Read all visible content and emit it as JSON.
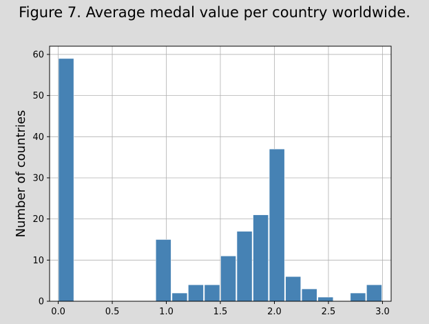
{
  "chart_data": {
    "type": "bar",
    "title": "Figure 7. Average medal value per country worldwide.",
    "xlabel": "",
    "ylabel": "Number of countries",
    "xlim": [
      -0.08,
      3.08
    ],
    "ylim": [
      0,
      62
    ],
    "grid": true,
    "x_ticks": [
      "0.0",
      "0.5",
      "1.0",
      "1.5",
      "2.0",
      "2.5",
      "3.0"
    ],
    "x_tick_values": [
      0,
      0.5,
      1.0,
      1.5,
      2.0,
      2.5,
      3.0
    ],
    "y_ticks": [
      "0",
      "10",
      "20",
      "30",
      "40",
      "50",
      "60"
    ],
    "y_tick_values": [
      0,
      10,
      20,
      30,
      40,
      50,
      60
    ],
    "bin_edges": [
      0.0,
      0.15,
      0.3,
      0.45,
      0.6,
      0.75,
      0.9,
      1.05,
      1.2,
      1.35,
      1.5,
      1.65,
      1.8,
      1.95,
      2.1,
      2.25,
      2.4,
      2.55,
      2.7,
      2.85,
      3.0
    ],
    "values": [
      59,
      0,
      0,
      0,
      0,
      0,
      15,
      2,
      4,
      4,
      11,
      17,
      21,
      37,
      6,
      3,
      1,
      0,
      2,
      4
    ],
    "bar_color": "#4682b4"
  }
}
